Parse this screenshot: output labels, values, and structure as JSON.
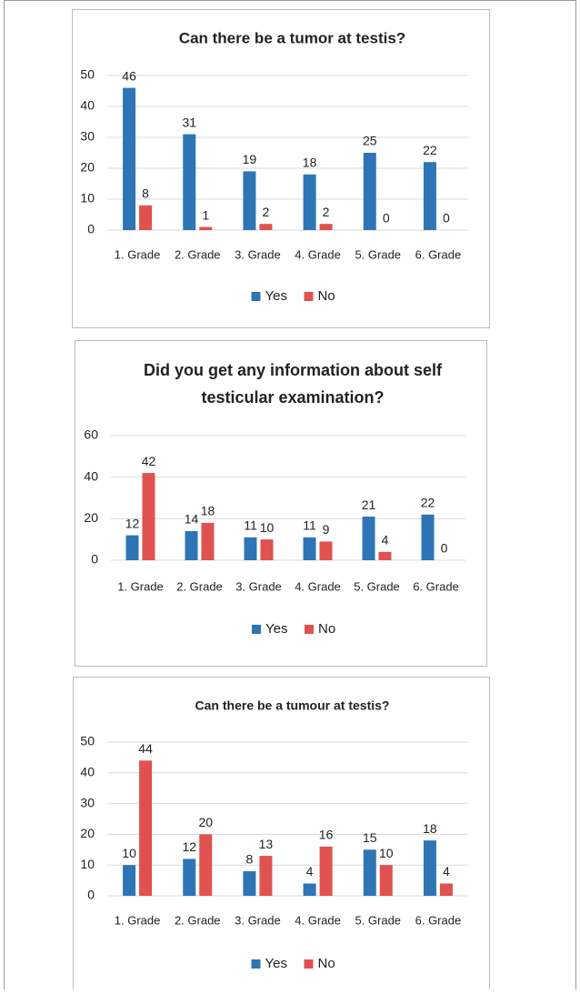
{
  "chart_data": [
    {
      "type": "bar",
      "title": "Can there be a tumor at testis?",
      "categories": [
        "1. Grade",
        "2. Grade",
        "3. Grade",
        "4. Grade",
        "5. Grade",
        "6. Grade"
      ],
      "series": [
        {
          "name": "Yes",
          "color": "#2e75b6",
          "values": [
            46,
            31,
            19,
            18,
            25,
            22
          ]
        },
        {
          "name": "No",
          "color": "#e0514f",
          "values": [
            8,
            1,
            2,
            2,
            0,
            0
          ]
        }
      ],
      "ylim": [
        0,
        50
      ],
      "yticks": [
        0,
        10,
        20,
        30,
        40,
        50
      ],
      "grid": true,
      "legend": "bottom"
    },
    {
      "type": "bar",
      "title": [
        "Did you get any information about self",
        "testicular examination?"
      ],
      "categories": [
        "1. Grade",
        "2. Grade",
        "3. Grade",
        "4. Grade",
        "5. Grade",
        "6. Grade"
      ],
      "series": [
        {
          "name": "Yes",
          "color": "#2e75b6",
          "values": [
            12,
            14,
            11,
            11,
            21,
            22
          ]
        },
        {
          "name": "No",
          "color": "#e0514f",
          "values": [
            42,
            18,
            10,
            9,
            4,
            0
          ]
        }
      ],
      "ylim": [
        0,
        60
      ],
      "yticks": [
        0,
        20,
        40,
        60
      ],
      "grid": true,
      "legend": "bottom"
    },
    {
      "type": "bar",
      "title": "Can there be a tumour at testis?",
      "categories": [
        "1. Grade",
        "2. Grade",
        "3. Grade",
        "4. Grade",
        "5. Grade",
        "6. Grade"
      ],
      "series": [
        {
          "name": "Yes",
          "color": "#2e75b6",
          "values": [
            10,
            12,
            8,
            4,
            15,
            18
          ]
        },
        {
          "name": "No",
          "color": "#e0514f",
          "values": [
            44,
            20,
            13,
            16,
            10,
            4
          ]
        }
      ],
      "ylim": [
        0,
        50
      ],
      "yticks": [
        0,
        10,
        20,
        30,
        40,
        50
      ],
      "grid": true,
      "legend": "bottom"
    }
  ]
}
